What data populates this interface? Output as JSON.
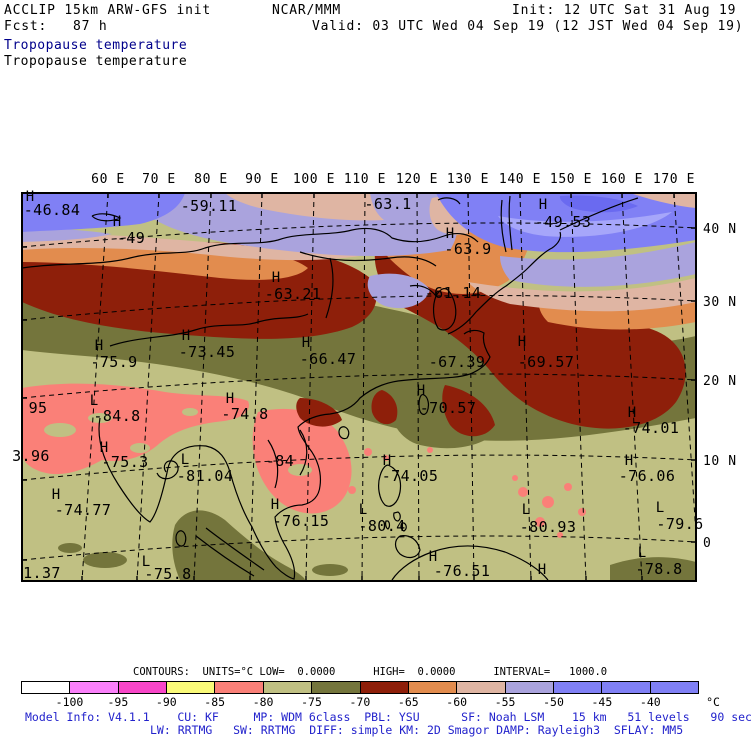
{
  "header": {
    "model_line": "ACCLIP 15km ARW-GFS init",
    "center": "NCAR/MMM",
    "init": "Init: 12 UTC Sat 31 Aug 19",
    "fcst": "Fcst:   87 h",
    "valid": "Valid: 03 UTC Wed 04 Sep 19 (12 JST Wed 04 Sep 19)",
    "field_title_primary": "Tropopause temperature",
    "field_title_secondary": "Tropopause temperature"
  },
  "map": {
    "lon_labels": [
      "60 E",
      "70 E",
      "80 E",
      "90 E",
      "100 E",
      "110 E",
      "120 E",
      "130 E",
      "140 E",
      "150 E",
      "160 E",
      "170 E"
    ],
    "lat_labels": [
      "40 N",
      "30 N",
      "20 N",
      "10 N",
      "0"
    ],
    "labels": [
      {
        "sym": "H",
        "sx": 30,
        "sy": 201,
        "value": "-46.84",
        "vx": 52,
        "vy": 215
      },
      {
        "sym": "H",
        "sx": 117,
        "sy": 226,
        "value": "-49",
        "vx": 131,
        "vy": 243
      },
      {
        "value": "-59.11",
        "vx": 209,
        "vy": 211
      },
      {
        "value": "-63.1",
        "vx": 388,
        "vy": 209
      },
      {
        "sym": "H",
        "sx": 543,
        "sy": 209,
        "value": "-49.53",
        "vx": 563,
        "vy": 227
      },
      {
        "sym": "H",
        "sx": 450,
        "sy": 238,
        "value": "-63.9",
        "vx": 468,
        "vy": 254
      },
      {
        "value": "-61.14",
        "vx": 453,
        "vy": 298
      },
      {
        "sym": "H",
        "sx": 276,
        "sy": 282,
        "value": "-63.21",
        "vx": 293,
        "vy": 299
      },
      {
        "sym": "H",
        "sx": 186,
        "sy": 340,
        "value": "-73.45",
        "vx": 207,
        "vy": 357
      },
      {
        "sym": "H",
        "sx": 99,
        "sy": 350,
        "value": "-75.9",
        "vx": 114,
        "vy": 367
      },
      {
        "sym": "H",
        "sx": 306,
        "sy": 347,
        "value": "-66.47",
        "vx": 328,
        "vy": 364
      },
      {
        "value": "-67.39",
        "vx": 457,
        "vy": 367
      },
      {
        "sym": "H",
        "sx": 522,
        "sy": 346,
        "value": "-69.57",
        "vx": 546,
        "vy": 367
      },
      {
        "sym": "H",
        "sx": 421,
        "sy": 395,
        "value": "-70.57",
        "vx": 448,
        "vy": 413
      },
      {
        "sym": "H",
        "sx": 230,
        "sy": 403,
        "value": "-74.8",
        "vx": 245,
        "vy": 419
      },
      {
        "sym": "L",
        "sx": 94,
        "sy": 405,
        "value": "-84.8",
        "vx": 117,
        "vy": 421
      },
      {
        "sym": "H",
        "sx": 104,
        "sy": 452,
        "value": "-75.3",
        "vx": 125,
        "vy": 467
      },
      {
        "sym": "L",
        "sx": 185,
        "sy": 464,
        "value": "-81.04",
        "vx": 205,
        "vy": 481
      },
      {
        "value": "-84",
        "vx": 280,
        "vy": 466
      },
      {
        "sym": "H",
        "sx": 56,
        "sy": 499,
        "value": "-74.77",
        "vx": 83,
        "vy": 515
      },
      {
        "sym": "H",
        "sx": 275,
        "sy": 509,
        "value": "-76.15",
        "vx": 301,
        "vy": 526
      },
      {
        "sym": "L",
        "sx": 363,
        "sy": 514,
        "value": "-80.4",
        "vx": 382,
        "vy": 531
      },
      {
        "sym": "L",
        "sx": 146,
        "sy": 566,
        "value": "-75.8",
        "vx": 168,
        "vy": 579
      },
      {
        "value": "1.37",
        "vx": 42,
        "vy": 578
      },
      {
        "value": "95",
        "vx": 38,
        "vy": 413
      },
      {
        "value": "3.96",
        "vx": 31,
        "vy": 461
      },
      {
        "sym": "H",
        "sx": 387,
        "sy": 465,
        "value": "-74.05",
        "vx": 410,
        "vy": 481
      },
      {
        "sym": "H",
        "sx": 632,
        "sy": 417,
        "value": "-74.01",
        "vx": 651,
        "vy": 433
      },
      {
        "sym": "H",
        "sx": 629,
        "sy": 465,
        "value": "-76.06",
        "vx": 647,
        "vy": 481
      },
      {
        "sym": "L",
        "sx": 526,
        "sy": 514,
        "value": "-80.93",
        "vx": 548,
        "vy": 532
      },
      {
        "sym": "L",
        "sx": 660,
        "sy": 512,
        "value": "-79.6",
        "vx": 680,
        "vy": 529
      },
      {
        "sym": "L",
        "sx": 642,
        "sy": 557,
        "value": "-78.8",
        "vx": 659,
        "vy": 574
      },
      {
        "sym": "H",
        "sx": 433,
        "sy": 561,
        "value": "-76.51",
        "vx": 462,
        "vy": 576
      },
      {
        "sym": "H",
        "sx": 542,
        "sy": 574
      }
    ]
  },
  "colorbar": {
    "contours_line": "CONTOURS:  UNITS=°C LOW=  0.0000      HIGH=  0.0000      INTERVAL=   1000.0",
    "ticks": [
      "-100",
      "-95",
      "-90",
      "-85",
      "-80",
      "-75",
      "-70",
      "-65",
      "-60",
      "-55",
      "-50",
      "-45",
      "-40"
    ],
    "unit": "°C",
    "colors": [
      "#ffffff",
      "#fa80fa",
      "#f846c8",
      "#fafa79",
      "#fa8078",
      "#c0c083",
      "#74753c",
      "#8e1f0a",
      "#e28c4e",
      "#dfb5a3",
      "#aaa3dd",
      "#8080f5",
      "#8080f5",
      "#8080f5"
    ]
  },
  "footer": {
    "line1": "Model Info: V4.1.1    CU: KF     MP: WDM 6class  PBL: YSU      SF: Noah LSM    15 km   51 levels   90 sec",
    "line2": "LW: RRTMG   SW: RRTMG  DIFF: simple KM: 2D Smagor DAMP: Rayleigh3  SFLAY: MM5"
  },
  "colors": {
    "title_blue": "#00008b",
    "footer_blue": "#2222cc",
    "land_light_olive": "#c0c083",
    "dark_olive": "#74753c",
    "dark_red": "#8e1f0a",
    "orange": "#e28c4e",
    "tan": "#dfb5a3",
    "light_purple": "#aaa3dd",
    "blue": "#8080f5",
    "salmon": "#fa8078"
  }
}
